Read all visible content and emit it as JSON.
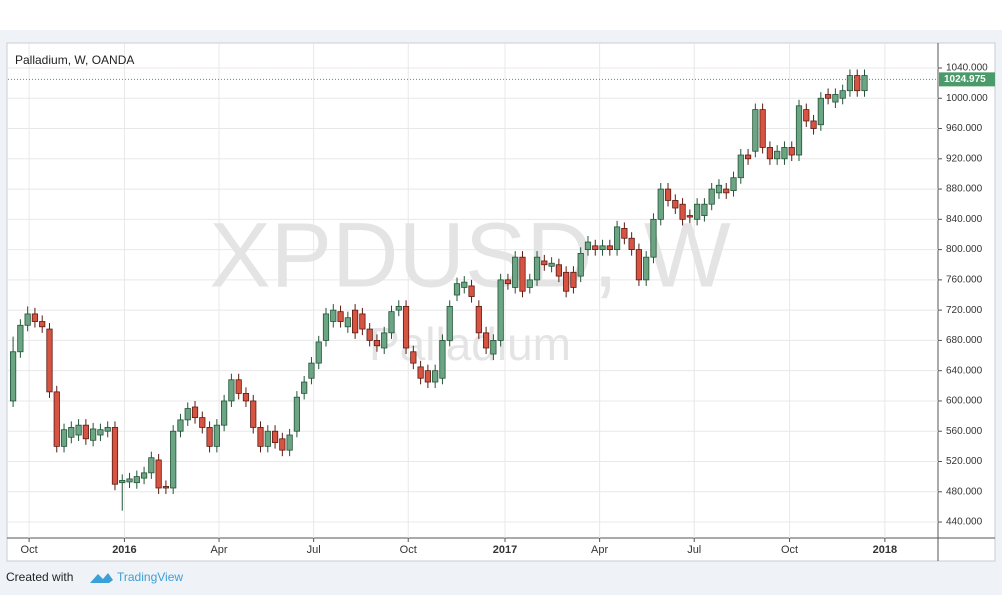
{
  "chart_data": {
    "type": "candlestick",
    "title": "Palladium, W, OANDA",
    "watermark": "XPDUSD, W",
    "watermark_subtitle": "Palladium",
    "footer": {
      "created_with": "Created with",
      "brand": "TradingView"
    },
    "up_color": "#6ba583",
    "down_color": "#d75442",
    "up_border": "#225437",
    "down_border": "#5b1a13",
    "last_price": 1024.975,
    "last_price_color": "#4a9a6a",
    "grid": true,
    "xlim": [
      -0.7,
      127.1
    ],
    "xticks": [
      {
        "value": 2.2,
        "label": "Oct"
      },
      {
        "value": 15.3,
        "label": "2016"
      },
      {
        "value": 28.3,
        "label": "Apr"
      },
      {
        "value": 41.3,
        "label": "Jul"
      },
      {
        "value": 54.3,
        "label": "Oct"
      },
      {
        "value": 67.6,
        "label": "2017"
      },
      {
        "value": 80.6,
        "label": "Apr"
      },
      {
        "value": 93.6,
        "label": "Jul"
      },
      {
        "value": 106.7,
        "label": "Oct"
      },
      {
        "value": 119.8,
        "label": "2018"
      }
    ],
    "ylim": [
      418.9,
      1071.7
    ],
    "yticks": [
      {
        "value": 440,
        "label": "440.000"
      },
      {
        "value": 480,
        "label": "480.000"
      },
      {
        "value": 520,
        "label": "520.000"
      },
      {
        "value": 560,
        "label": "560.000"
      },
      {
        "value": 600,
        "label": "600.000"
      },
      {
        "value": 640,
        "label": "640.000"
      },
      {
        "value": 680,
        "label": "680.000"
      },
      {
        "value": 720,
        "label": "720.000"
      },
      {
        "value": 760,
        "label": "760.000"
      },
      {
        "value": 800,
        "label": "800.000"
      },
      {
        "value": 840,
        "label": "840.000"
      },
      {
        "value": 880,
        "label": "880.000"
      },
      {
        "value": 920,
        "label": "920.000"
      },
      {
        "value": 960,
        "label": "960.000"
      },
      {
        "value": 1000,
        "label": "1000.000"
      },
      {
        "value": 1040,
        "label": "1040.000"
      }
    ],
    "open": [
      600,
      665,
      700,
      715,
      705,
      695,
      612,
      540,
      552,
      555,
      568,
      548,
      555,
      560,
      565,
      492,
      493,
      492,
      498,
      505,
      522,
      487,
      485,
      560,
      575,
      592,
      578,
      565,
      540,
      568,
      600,
      628,
      610,
      600,
      565,
      540,
      560,
      550,
      535,
      560,
      610,
      630,
      650,
      680,
      705,
      718,
      698,
      720,
      715,
      695,
      680,
      670,
      690,
      720,
      725,
      665,
      645,
      640,
      625,
      630,
      680,
      740,
      750,
      752,
      725,
      690,
      662,
      680,
      760,
      750,
      790,
      750,
      760,
      785,
      778,
      780,
      770,
      770,
      765,
      800,
      805,
      800,
      805,
      800,
      828,
      815,
      800,
      760,
      790,
      840,
      880,
      865,
      860,
      845,
      840,
      845,
      860,
      875,
      880,
      878,
      895,
      925,
      930,
      985,
      935,
      920,
      920,
      935,
      925,
      985,
      970,
      965,
      1005,
      995,
      1000,
      1010,
      1030,
      1010
    ],
    "high": [
      685,
      708,
      725,
      723,
      713,
      703,
      620,
      570,
      573,
      576,
      576,
      571,
      570,
      573,
      573,
      503,
      505,
      508,
      513,
      533,
      530,
      495,
      568,
      583,
      598,
      600,
      586,
      573,
      576,
      608,
      636,
      636,
      618,
      608,
      573,
      568,
      568,
      558,
      563,
      613,
      633,
      658,
      686,
      723,
      728,
      726,
      718,
      728,
      723,
      703,
      688,
      698,
      726,
      733,
      733,
      673,
      653,
      648,
      648,
      688,
      733,
      763,
      765,
      760,
      733,
      698,
      688,
      768,
      768,
      798,
      798,
      768,
      798,
      793,
      790,
      788,
      778,
      778,
      803,
      818,
      813,
      813,
      813,
      838,
      836,
      823,
      808,
      798,
      848,
      888,
      888,
      873,
      868,
      853,
      868,
      868,
      888,
      893,
      888,
      903,
      933,
      933,
      993,
      993,
      943,
      938,
      943,
      943,
      998,
      993,
      978,
      1008,
      1013,
      1013,
      1018,
      1038,
      1038,
      1038
    ],
    "low": [
      592,
      657,
      692,
      697,
      690,
      604,
      532,
      532,
      544,
      547,
      542,
      540,
      547,
      552,
      482,
      455,
      485,
      484,
      490,
      497,
      477,
      477,
      477,
      552,
      567,
      570,
      557,
      532,
      532,
      560,
      592,
      602,
      592,
      557,
      532,
      532,
      537,
      527,
      527,
      552,
      602,
      622,
      642,
      672,
      697,
      697,
      690,
      682,
      687,
      672,
      665,
      662,
      682,
      712,
      662,
      642,
      622,
      617,
      617,
      622,
      672,
      732,
      742,
      730,
      682,
      662,
      654,
      672,
      747,
      742,
      737,
      742,
      752,
      772,
      770,
      757,
      737,
      742,
      757,
      792,
      792,
      792,
      792,
      792,
      807,
      792,
      752,
      752,
      782,
      832,
      857,
      847,
      832,
      835,
      832,
      837,
      852,
      867,
      867,
      870,
      887,
      912,
      922,
      927,
      912,
      912,
      912,
      917,
      917,
      962,
      952,
      957,
      992,
      987,
      992,
      1002,
      1002,
      1002
    ],
    "close": [
      665,
      700,
      715,
      705,
      698,
      612,
      540,
      562,
      565,
      568,
      550,
      563,
      562,
      565,
      490,
      495,
      497,
      500,
      505,
      525,
      485,
      485,
      560,
      575,
      590,
      578,
      565,
      540,
      568,
      600,
      628,
      610,
      600,
      565,
      540,
      560,
      545,
      535,
      555,
      605,
      625,
      650,
      678,
      715,
      720,
      705,
      710,
      690,
      695,
      680,
      673,
      690,
      718,
      725,
      670,
      650,
      630,
      625,
      640,
      680,
      725,
      755,
      757,
      738,
      690,
      670,
      680,
      760,
      755,
      790,
      745,
      760,
      790,
      780,
      782,
      765,
      745,
      750,
      795,
      810,
      800,
      805,
      800,
      830,
      815,
      800,
      760,
      790,
      840,
      880,
      865,
      855,
      840,
      843,
      860,
      860,
      880,
      885,
      875,
      895,
      925,
      920,
      985,
      935,
      920,
      930,
      935,
      925,
      990,
      970,
      960,
      1000,
      1000,
      1005,
      1010,
      1030,
      1010,
      1030
    ]
  }
}
